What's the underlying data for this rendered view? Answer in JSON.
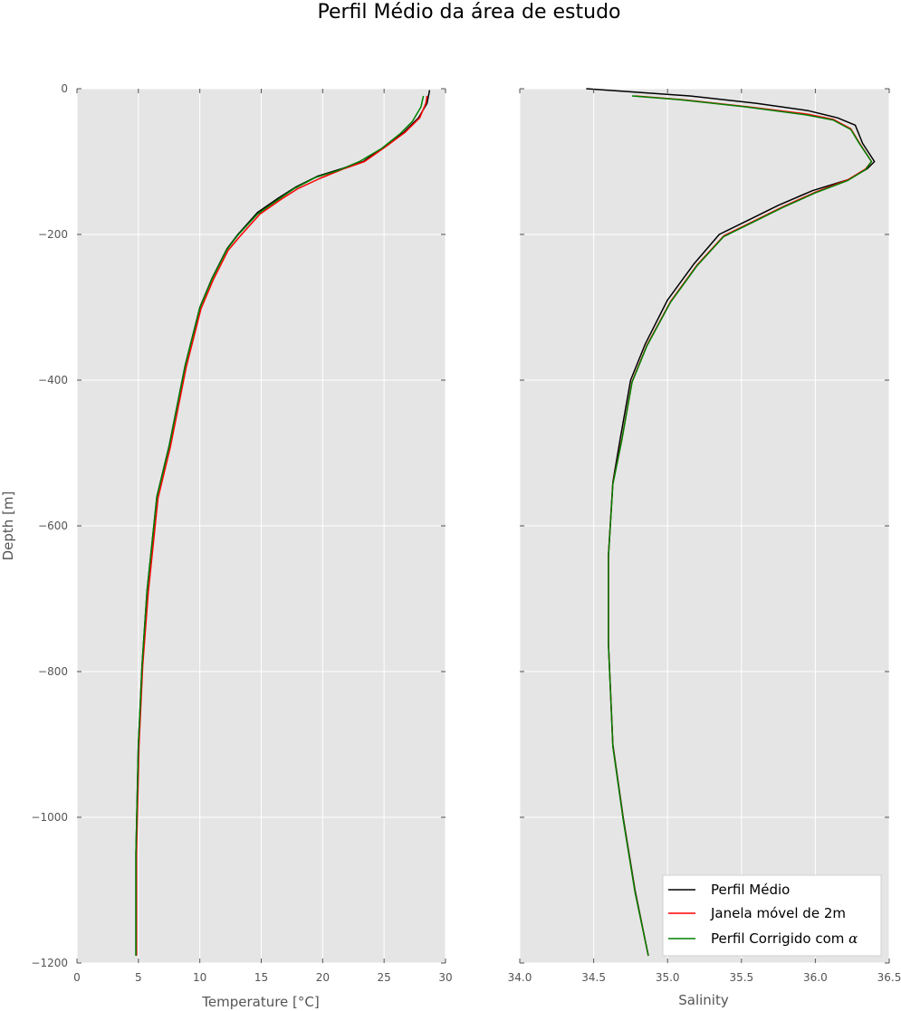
{
  "figure": {
    "title": "Perfil Médio da área de estudo"
  },
  "legend": {
    "placement": "lower-right",
    "entries": [
      {
        "label": "Perfil Médio",
        "color": "#000000"
      },
      {
        "label": "Janela móvel de 2m",
        "color": "#ff0000"
      },
      {
        "label": "Perfil Corrigido com ",
        "symbol": "α",
        "color": "#008000"
      }
    ]
  },
  "chart_data": [
    {
      "type": "line",
      "xlabel": "Temperature [°C]",
      "ylabel": "Depth [m]",
      "xlim": [
        0,
        30
      ],
      "ylim": [
        -1200,
        0
      ],
      "xticks": [
        0,
        5,
        10,
        15,
        20,
        25,
        30
      ],
      "yticks": [
        0,
        -200,
        -400,
        -600,
        -800,
        -1000,
        -1200
      ],
      "grid": true,
      "series": [
        {
          "name": "Perfil Médio",
          "color": "#000000",
          "points": [
            [
              28.7,
              -2
            ],
            [
              28.5,
              -20
            ],
            [
              27.8,
              -40
            ],
            [
              26.6,
              -60
            ],
            [
              25,
              -80
            ],
            [
              23.3,
              -100
            ],
            [
              21.5,
              -110
            ],
            [
              19.6,
              -120
            ],
            [
              17.8,
              -135
            ],
            [
              16.4,
              -150
            ],
            [
              14.7,
              -170
            ],
            [
              13.1,
              -200
            ],
            [
              12.2,
              -220
            ],
            [
              11,
              -260
            ],
            [
              10,
              -300
            ],
            [
              8.8,
              -380
            ],
            [
              7.5,
              -490
            ],
            [
              6.5,
              -560
            ],
            [
              5.7,
              -690
            ],
            [
              5.3,
              -790
            ],
            [
              5,
              -900
            ],
            [
              4.8,
              -1050
            ],
            [
              4.8,
              -1190
            ]
          ]
        },
        {
          "name": "Janela móvel de 2m",
          "color": "#ff0000",
          "points": [
            [
              28.5,
              -10
            ],
            [
              28.4,
              -20
            ],
            [
              27.9,
              -40
            ],
            [
              26.7,
              -60
            ],
            [
              25.1,
              -80
            ],
            [
              23.4,
              -100
            ],
            [
              21.7,
              -110
            ],
            [
              19.8,
              -123
            ],
            [
              18,
              -137
            ],
            [
              16.6,
              -152
            ],
            [
              14.9,
              -172
            ],
            [
              13.3,
              -202
            ],
            [
              12.3,
              -222
            ],
            [
              11.1,
              -262
            ],
            [
              10.1,
              -302
            ],
            [
              8.9,
              -382
            ],
            [
              7.6,
              -492
            ],
            [
              6.6,
              -562
            ],
            [
              5.8,
              -692
            ],
            [
              5.35,
              -792
            ],
            [
              5.05,
              -902
            ],
            [
              4.85,
              -1050
            ],
            [
              4.85,
              -1190
            ]
          ]
        },
        {
          "name": "Perfil Corrigido com α",
          "color": "#008000",
          "points": [
            [
              28.2,
              -10
            ],
            [
              28,
              -25
            ],
            [
              27.3,
              -45
            ],
            [
              26.3,
              -62
            ],
            [
              24.8,
              -82
            ],
            [
              23,
              -100
            ],
            [
              21.3,
              -112
            ],
            [
              19.4,
              -122
            ],
            [
              17.7,
              -137
            ],
            [
              16.4,
              -152
            ],
            [
              14.7,
              -172
            ],
            [
              13.1,
              -201
            ],
            [
              12.2,
              -221
            ],
            [
              11,
              -261
            ],
            [
              10,
              -301
            ],
            [
              8.8,
              -381
            ],
            [
              7.5,
              -491
            ],
            [
              6.5,
              -561
            ],
            [
              5.7,
              -691
            ],
            [
              5.3,
              -791
            ],
            [
              5,
              -901
            ],
            [
              4.8,
              -1050
            ],
            [
              4.8,
              -1190
            ]
          ]
        }
      ]
    },
    {
      "type": "line",
      "xlabel": "Salinity",
      "ylabel": "",
      "xlim": [
        34.0,
        36.5
      ],
      "ylim": [
        -1200,
        0
      ],
      "xticks": [
        "34.0",
        "34.5",
        "35.0",
        "35.5",
        "36.0",
        "36.5"
      ],
      "yticks": [
        0,
        -200,
        -400,
        -600,
        -800,
        -1000,
        -1200
      ],
      "grid": true,
      "series": [
        {
          "name": "Perfil Médio",
          "color": "#000000",
          "points": [
            [
              34.45,
              0
            ],
            [
              34.8,
              -5
            ],
            [
              35.15,
              -10
            ],
            [
              35.6,
              -20
            ],
            [
              35.95,
              -30
            ],
            [
              36.15,
              -40
            ],
            [
              36.27,
              -50
            ],
            [
              36.32,
              -75
            ],
            [
              36.4,
              -100
            ],
            [
              36.35,
              -110
            ],
            [
              36.22,
              -125
            ],
            [
              35.98,
              -140
            ],
            [
              35.75,
              -160
            ],
            [
              35.55,
              -180
            ],
            [
              35.35,
              -200
            ],
            [
              35.18,
              -240
            ],
            [
              35.0,
              -290
            ],
            [
              34.85,
              -350
            ],
            [
              34.75,
              -400
            ],
            [
              34.68,
              -480
            ],
            [
              34.63,
              -540
            ],
            [
              34.6,
              -640
            ],
            [
              34.6,
              -760
            ],
            [
              34.63,
              -900
            ],
            [
              34.7,
              -1000
            ],
            [
              34.78,
              -1100
            ],
            [
              34.87,
              -1190
            ]
          ]
        },
        {
          "name": "Janela móvel de 2m",
          "color": "#ff0000",
          "points": [
            [
              34.78,
              -10
            ],
            [
              35.1,
              -15
            ],
            [
              35.55,
              -25
            ],
            [
              35.95,
              -35
            ],
            [
              36.12,
              -42
            ],
            [
              36.24,
              -55
            ],
            [
              36.3,
              -75
            ],
            [
              36.38,
              -100
            ],
            [
              36.34,
              -110
            ],
            [
              36.22,
              -125
            ],
            [
              36.0,
              -142
            ],
            [
              35.78,
              -162
            ],
            [
              35.58,
              -182
            ],
            [
              35.38,
              -202
            ],
            [
              35.2,
              -242
            ],
            [
              35.02,
              -292
            ],
            [
              34.86,
              -352
            ],
            [
              34.76,
              -402
            ],
            [
              34.69,
              -482
            ],
            [
              34.63,
              -542
            ],
            [
              34.6,
              -642
            ],
            [
              34.6,
              -762
            ],
            [
              34.63,
              -902
            ],
            [
              34.7,
              -1002
            ],
            [
              34.78,
              -1102
            ],
            [
              34.87,
              -1190
            ]
          ]
        },
        {
          "name": "Perfil Corrigido com α",
          "color": "#008000",
          "points": [
            [
              34.76,
              -10
            ],
            [
              35.08,
              -15
            ],
            [
              35.53,
              -25
            ],
            [
              35.94,
              -36
            ],
            [
              36.12,
              -43
            ],
            [
              36.24,
              -56
            ],
            [
              36.3,
              -76
            ],
            [
              36.38,
              -100
            ],
            [
              36.34,
              -111
            ],
            [
              36.22,
              -126
            ],
            [
              36.0,
              -143
            ],
            [
              35.78,
              -163
            ],
            [
              35.58,
              -183
            ],
            [
              35.38,
              -203
            ],
            [
              35.2,
              -243
            ],
            [
              35.02,
              -293
            ],
            [
              34.86,
              -353
            ],
            [
              34.76,
              -403
            ],
            [
              34.69,
              -483
            ],
            [
              34.63,
              -543
            ],
            [
              34.6,
              -643
            ],
            [
              34.6,
              -763
            ],
            [
              34.63,
              -903
            ],
            [
              34.7,
              -1003
            ],
            [
              34.78,
              -1103
            ],
            [
              34.87,
              -1190
            ]
          ]
        }
      ]
    }
  ]
}
